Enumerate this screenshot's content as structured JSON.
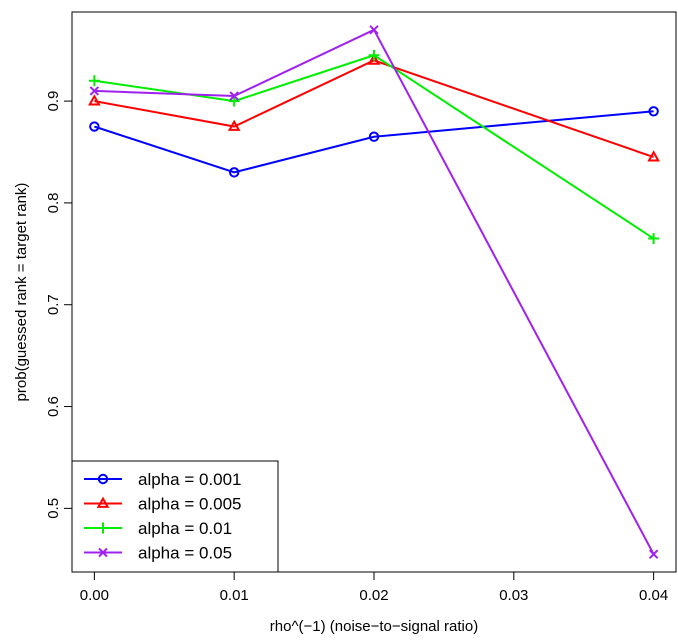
{
  "chart_data": {
    "type": "line",
    "title": "",
    "xlabel": "rho^(−1) (noise−to−signal ratio)",
    "ylabel": "prob(guessed rank = target rank)",
    "xlim": [
      -0.0016,
      0.0416
    ],
    "ylim": [
      0.4375,
      0.9875
    ],
    "x_ticks": [
      0.0,
      0.01,
      0.02,
      0.03,
      0.04
    ],
    "x_tick_labels": [
      "0.00",
      "0.01",
      "0.02",
      "0.03",
      "0.04"
    ],
    "y_ticks": [
      0.5,
      0.6,
      0.7,
      0.8,
      0.9
    ],
    "y_tick_labels": [
      "0.5",
      "0.6",
      "0.7",
      "0.8",
      "0.9"
    ],
    "grid": false,
    "legend_position": "bottom-left",
    "x": [
      0.0,
      0.01,
      0.02,
      0.04
    ],
    "series": [
      {
        "name": "alpha = 0.001",
        "color": "#0000ff",
        "marker": "circle",
        "values": [
          0.875,
          0.83,
          0.865,
          0.89
        ]
      },
      {
        "name": "alpha = 0.005",
        "color": "#ff0000",
        "marker": "triangle",
        "values": [
          0.9,
          0.875,
          0.94,
          0.845
        ]
      },
      {
        "name": "alpha = 0.01",
        "color": "#00ee00",
        "marker": "plus",
        "values": [
          0.92,
          0.9,
          0.945,
          0.765
        ]
      },
      {
        "name": "alpha = 0.05",
        "color": "#a020f0",
        "marker": "cross",
        "values": [
          0.91,
          0.905,
          0.97,
          0.455
        ]
      }
    ]
  }
}
